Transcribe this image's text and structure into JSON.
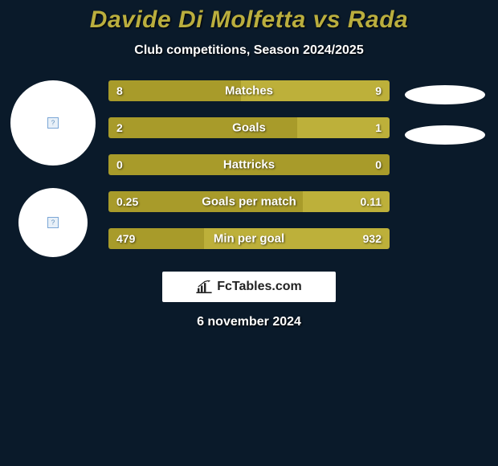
{
  "title": "Davide Di Molfetta vs Rada",
  "subtitle": "Club competitions, Season 2024/2025",
  "date": "6 november 2024",
  "logo_text": "FcTables.com",
  "colors": {
    "background": "#0a1a2a",
    "title": "#baae3e",
    "left_bar": "#a89b2a",
    "right_bar": "#bdb03a",
    "single_bar": "#a89b2a",
    "white": "#ffffff"
  },
  "bars": [
    {
      "label": "Matches",
      "left_val": "8",
      "right_val": "9",
      "left_pct": 47,
      "right_pct": 53
    },
    {
      "label": "Goals",
      "left_val": "2",
      "right_val": "1",
      "left_pct": 67,
      "right_pct": 33
    },
    {
      "label": "Hattricks",
      "left_val": "0",
      "right_val": "0",
      "left_pct": 100,
      "right_pct": 0
    },
    {
      "label": "Goals per match",
      "left_val": "0.25",
      "right_val": "0.11",
      "left_pct": 69,
      "right_pct": 31
    },
    {
      "label": "Min per goal",
      "left_val": "479",
      "right_val": "932",
      "left_pct": 34,
      "right_pct": 66
    }
  ]
}
